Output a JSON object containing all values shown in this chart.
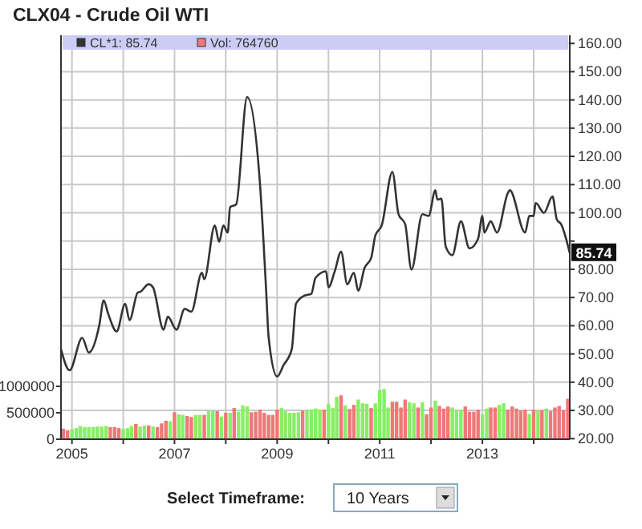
{
  "chart_data": {
    "type": "line",
    "title": "CLX04 - Crude Oil WTI",
    "xlim": [
      "2004-10-15",
      "2014-09-15"
    ],
    "xticks": [
      {
        "value": "2005",
        "label": "2005"
      },
      {
        "value": "2006",
        "label": null
      },
      {
        "value": "2007",
        "label": "2007"
      },
      {
        "value": "2008",
        "label": null
      },
      {
        "value": "2009",
        "label": "2009"
      },
      {
        "value": "2010",
        "label": null
      },
      {
        "value": "2011",
        "label": "2011"
      },
      {
        "value": "2012",
        "label": null
      },
      {
        "value": "2013",
        "label": "2013"
      },
      {
        "value": "2014",
        "label": null
      }
    ],
    "ylim": [
      0,
      7640000
    ],
    "yticks": [
      0,
      500000,
      1000000
    ],
    "y2lim": [
      19.8,
      162.9
    ],
    "y2ticks": [
      {
        "value": 20,
        "label": "20.00"
      },
      {
        "value": 30,
        "label": "30.00"
      },
      {
        "value": 40,
        "label": "40.00"
      },
      {
        "value": 50,
        "label": "50.00"
      },
      {
        "value": 60,
        "label": "60.00"
      },
      {
        "value": 70,
        "label": "70.00"
      },
      {
        "value": 80,
        "label": "80.00"
      },
      {
        "value": 90,
        "label": null
      },
      {
        "value": 100,
        "label": "100.00"
      },
      {
        "value": 110,
        "label": "110.00"
      },
      {
        "value": 120,
        "label": "120.00"
      },
      {
        "value": 130,
        "label": "130.00"
      },
      {
        "value": 140,
        "label": "140.00"
      },
      {
        "value": 150,
        "label": "150.00"
      },
      {
        "value": 160,
        "label": "160.00"
      }
    ],
    "grid": true,
    "legend": "top",
    "marker": "none",
    "line_style": "solid",
    "series": [
      {
        "name": "CL*1: 85.74",
        "axis": "y2",
        "color": "#333333",
        "x": [
          "2004-10-15",
          "2004-12-15",
          "2005-03-15",
          "2005-05-01",
          "2005-07-15",
          "2005-08-15",
          "2005-09-15",
          "2005-11-15",
          "2006-01-15",
          "2006-02-15",
          "2006-04-15",
          "2006-05-01",
          "2006-07-01",
          "2006-08-01",
          "2006-10-15",
          "2006-11-15",
          "2007-01-15",
          "2007-03-15",
          "2007-05-01",
          "2007-07-15",
          "2007-08-01",
          "2007-10-15",
          "2007-11-15",
          "2007-12-15",
          "2008-01-15",
          "2008-02-01",
          "2008-03-15",
          "2008-06-01",
          "2008-09-01",
          "2008-10-15",
          "2008-11-01",
          "2009-01-01",
          "2009-02-15",
          "2009-04-15",
          "2009-05-15",
          "2009-07-15",
          "2009-09-01",
          "2009-10-01",
          "2009-12-15",
          "2010-01-01",
          "2010-02-15",
          "2010-04-01",
          "2010-05-15",
          "2010-07-01",
          "2010-08-01",
          "2010-09-15",
          "2010-11-01",
          "2010-12-01",
          "2011-01-15",
          "2011-04-01",
          "2011-05-15",
          "2011-07-01",
          "2011-08-15",
          "2011-11-01",
          "2011-12-15",
          "2012-02-01",
          "2012-02-15",
          "2012-03-15",
          "2012-04-15",
          "2012-06-01",
          "2012-08-01",
          "2012-10-01",
          "2012-12-01",
          "2013-01-01",
          "2013-01-15",
          "2013-03-01",
          "2013-04-15",
          "2013-07-01",
          "2013-07-15",
          "2013-11-01",
          "2013-12-01",
          "2014-01-01",
          "2014-01-15",
          "2014-03-15",
          "2014-05-15",
          "2014-06-15",
          "2014-07-15",
          "2014-09-15"
        ],
        "values": [
          51.7,
          44.2,
          55.7,
          50.5,
          60.3,
          69,
          64.4,
          58,
          67.8,
          62,
          71.8,
          72,
          74.7,
          73.6,
          58.6,
          63.2,
          58.6,
          66,
          65,
          78.8,
          76.5,
          95.5,
          89.7,
          95.5,
          93,
          102,
          103,
          141,
          110,
          72,
          56,
          42,
          46,
          51.7,
          67.8,
          70.7,
          71.3,
          77,
          79.3,
          73.6,
          79.3,
          86.2,
          74.7,
          78.8,
          72.4,
          80.5,
          84,
          92,
          95.5,
          114.5,
          99.5,
          96,
          79.9,
          99.5,
          98.9,
          108,
          104.7,
          105,
          88,
          85,
          97,
          87.4,
          90.8,
          98.9,
          93,
          97,
          93,
          107,
          108,
          93,
          98.9,
          98.9,
          103.5,
          100,
          105.8,
          97.6,
          96,
          85.74
        ]
      },
      {
        "name": "Vol: 764760",
        "type": "bar",
        "axis": "y",
        "color": "#f07878",
        "x": [
          "2004-11",
          "2004-12",
          "2005-01",
          "2005-02",
          "2005-03",
          "2005-04",
          "2005-05",
          "2005-06",
          "2005-07",
          "2005-08",
          "2005-09",
          "2005-10",
          "2005-11",
          "2005-12",
          "2006-01",
          "2006-02",
          "2006-03",
          "2006-04",
          "2006-05",
          "2006-06",
          "2006-07",
          "2006-08",
          "2006-09",
          "2006-10",
          "2006-11",
          "2006-12",
          "2007-01",
          "2007-02",
          "2007-03",
          "2007-04",
          "2007-05",
          "2007-06",
          "2007-07",
          "2007-08",
          "2007-09",
          "2007-10",
          "2007-11",
          "2007-12",
          "2008-01",
          "2008-02",
          "2008-03",
          "2008-04",
          "2008-05",
          "2008-06",
          "2008-07",
          "2008-08",
          "2008-09",
          "2008-10",
          "2008-11",
          "2008-12",
          "2009-01",
          "2009-02",
          "2009-03",
          "2009-04",
          "2009-05",
          "2009-06",
          "2009-07",
          "2009-08",
          "2009-09",
          "2009-10",
          "2009-11",
          "2009-12",
          "2010-01",
          "2010-02",
          "2010-03",
          "2010-04",
          "2010-05",
          "2010-06",
          "2010-07",
          "2010-08",
          "2010-09",
          "2010-10",
          "2010-11",
          "2010-12",
          "2011-01",
          "2011-02",
          "2011-03",
          "2011-04",
          "2011-05",
          "2011-06",
          "2011-07",
          "2011-08",
          "2011-09",
          "2011-10",
          "2011-11",
          "2011-12",
          "2012-01",
          "2012-02",
          "2012-03",
          "2012-04",
          "2012-05",
          "2012-06",
          "2012-07",
          "2012-08",
          "2012-09",
          "2012-10",
          "2012-11",
          "2012-12",
          "2013-01",
          "2013-02",
          "2013-03",
          "2013-04",
          "2013-05",
          "2013-06",
          "2013-07",
          "2013-08",
          "2013-09",
          "2013-10",
          "2013-11",
          "2013-12",
          "2014-01",
          "2014-02",
          "2014-03",
          "2014-04",
          "2014-05",
          "2014-06",
          "2014-07",
          "2014-08",
          "2014-09"
        ],
        "values": [
          200000,
          170000,
          190000,
          210000,
          250000,
          230000,
          230000,
          230000,
          240000,
          240000,
          250000,
          230000,
          230000,
          210000,
          200000,
          210000,
          250000,
          290000,
          240000,
          260000,
          260000,
          240000,
          230000,
          300000,
          350000,
          340000,
          510000,
          470000,
          460000,
          440000,
          420000,
          460000,
          460000,
          460000,
          550000,
          540000,
          530000,
          430000,
          500000,
          500000,
          590000,
          520000,
          640000,
          620000,
          510000,
          520000,
          560000,
          500000,
          460000,
          460000,
          560000,
          590000,
          530000,
          500000,
          500000,
          510000,
          540000,
          550000,
          560000,
          580000,
          560000,
          560000,
          670000,
          590000,
          800000,
          830000,
          640000,
          570000,
          650000,
          750000,
          680000,
          670000,
          590000,
          680000,
          930000,
          950000,
          600000,
          710000,
          710000,
          600000,
          750000,
          700000,
          680000,
          600000,
          700000,
          470000,
          600000,
          730000,
          630000,
          580000,
          620000,
          600000,
          550000,
          550000,
          620000,
          520000,
          520000,
          560000,
          470000,
          580000,
          600000,
          600000,
          650000,
          680000,
          560000,
          620000,
          580000,
          540000,
          560000,
          480000,
          560000,
          550000,
          550000,
          580000,
          530000,
          600000,
          630000,
          550000,
          764760
        ],
        "colors": [
          "#f07878",
          "#f07878",
          "#88ee66",
          "#88ee66",
          "#88ee66",
          "#88ee66",
          "#88ee66",
          "#88ee66",
          "#88ee66",
          "#88ee66",
          "#88ee66",
          "#f07878",
          "#f07878",
          "#f07878",
          "#88ee66",
          "#88ee66",
          "#88ee66",
          "#f07878",
          "#88ee66",
          "#88ee66",
          "#f07878",
          "#88ee66",
          "#f07878",
          "#f07878",
          "#f07878",
          "#88ee66",
          "#f07878",
          "#88ee66",
          "#88ee66",
          "#f07878",
          "#f07878",
          "#88ee66",
          "#88ee66",
          "#f07878",
          "#88ee66",
          "#88ee66",
          "#f07878",
          "#88ee66",
          "#f07878",
          "#88ee66",
          "#f07878",
          "#88ee66",
          "#88ee66",
          "#88ee66",
          "#f07878",
          "#f07878",
          "#f07878",
          "#f07878",
          "#f07878",
          "#f07878",
          "#f07878",
          "#88ee66",
          "#88ee66",
          "#88ee66",
          "#88ee66",
          "#88ee66",
          "#f07878",
          "#88ee66",
          "#88ee66",
          "#88ee66",
          "#88ee66",
          "#f07878",
          "#88ee66",
          "#88ee66",
          "#88ee66",
          "#f07878",
          "#88ee66",
          "#f07878",
          "#f07878",
          "#88ee66",
          "#88ee66",
          "#88ee66",
          "#f07878",
          "#88ee66",
          "#88ee66",
          "#88ee66",
          "#88ee66",
          "#f07878",
          "#f07878",
          "#f07878",
          "#f07878",
          "#88ee66",
          "#88ee66",
          "#f07878",
          "#88ee66",
          "#f07878",
          "#f07878",
          "#88ee66",
          "#f07878",
          "#f07878",
          "#f07878",
          "#88ee66",
          "#88ee66",
          "#88ee66",
          "#f07878",
          "#f07878",
          "#f07878",
          "#f07878",
          "#88ee66",
          "#88ee66",
          "#f07878",
          "#f07878",
          "#88ee66",
          "#88ee66",
          "#f07878",
          "#f07878",
          "#f07878",
          "#f07878",
          "#f07878",
          "#88ee66",
          "#f07878",
          "#88ee66",
          "#f07878",
          "#88ee66",
          "#f07878",
          "#f07878",
          "#f07878",
          "#f07878",
          "#f07878"
        ]
      }
    ],
    "annotations": [
      "85.74",
      "Select Timeframe:",
      "10 Years"
    ]
  }
}
